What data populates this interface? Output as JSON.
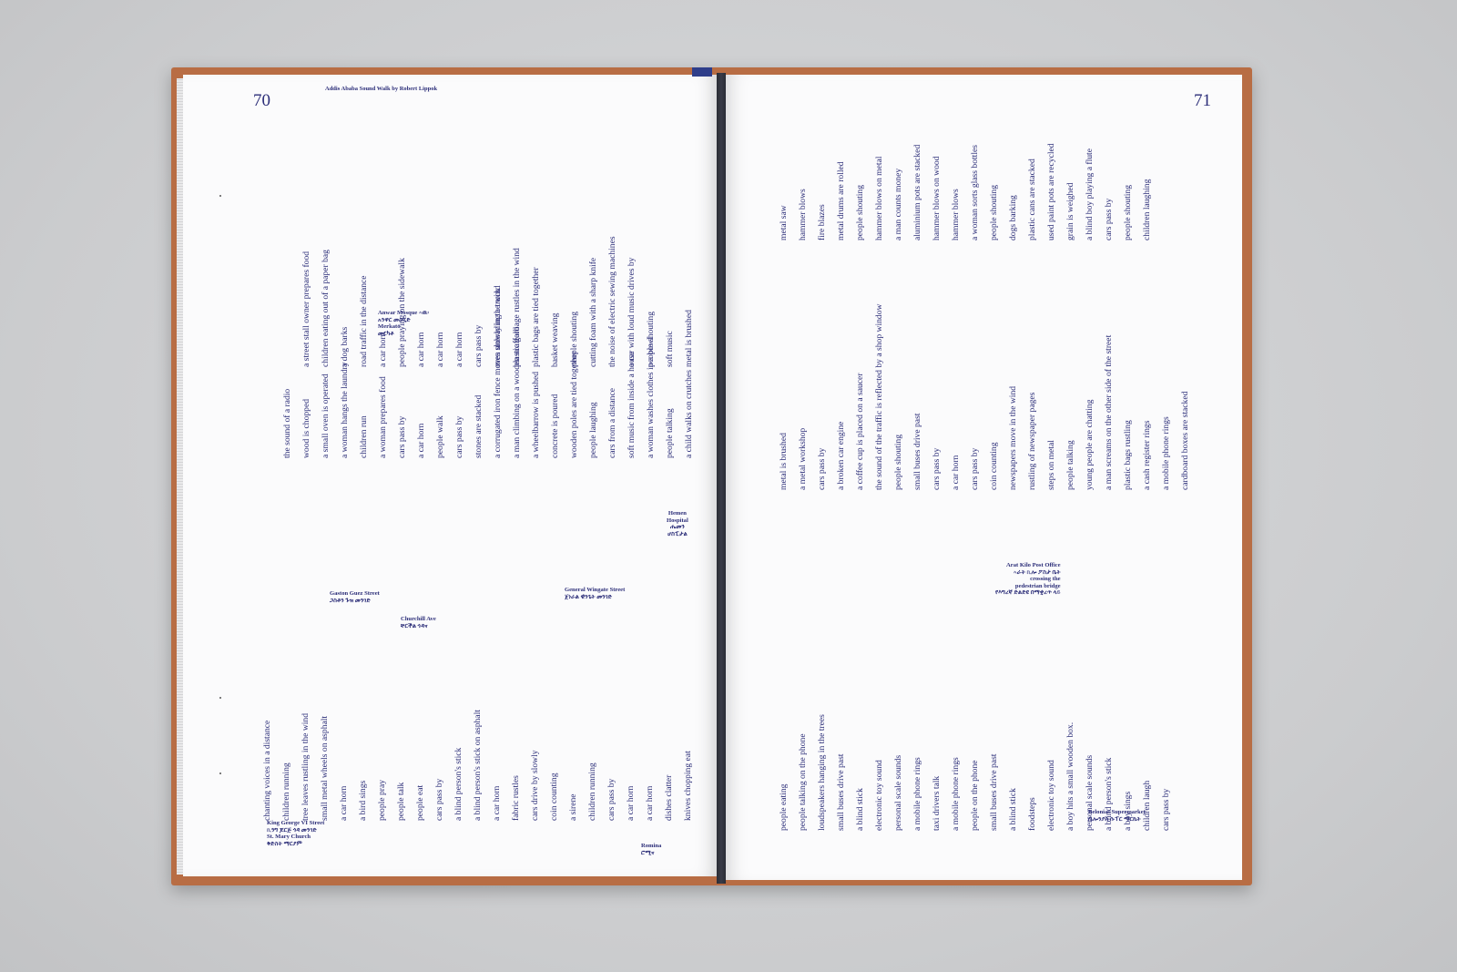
{
  "left_page": {
    "page_number": "70",
    "header": "Addis Ababa Sound Walk by Robert Lippok",
    "block_top": [
      "a street stall owner prepares food",
      "children eating out of a paper bag",
      "a dog barks",
      "road traffic in the distance",
      "a car horn",
      "people praying on the sidewalk",
      "a car horn",
      "a car horn",
      "a car horn",
      "cars pass by",
      "men unloading a truck",
      "plastic garbage rustles in the wind",
      "plastic bags are tied together",
      "basket weaving",
      "people shouting",
      "cutting foam with a sharp knife",
      "the noise of electric sewing machines",
      "a car with loud music drives by",
      "people shouting",
      "soft music",
      "metal is brushed"
    ],
    "block_mid": [
      "the sound of a radio",
      "wood is chopped",
      "a small oven is operated",
      "a woman hangs the laundry",
      "children run",
      "a woman prepares food",
      "cars pass by",
      "a car horn",
      "people walk",
      "cars pass by",
      "stones are stacked",
      "a corrugated iron fence moves slowly in the wind",
      "a man climbing on a wooden scaffold",
      "a wheelbarrow is pushed",
      "concrete is poured",
      "wooden poles are tied together",
      "people laughing",
      "cars from a distance",
      "soft music from inside a house",
      "a woman washes clothes in a bowl",
      "people talking",
      "a child walks on crutches"
    ],
    "block_bottom": [
      "chanting voices in a distance",
      "children running",
      "tree leaves rustling in the wind",
      "small metal wheels on asphalt",
      "a car horn",
      "a bird sings",
      "people pray",
      "people talk",
      "people eat",
      "cars pass by",
      "a blind person's stick",
      "a blind person's stick on asphalt",
      "a car horn",
      "fabric rustles",
      "cars drive by slowly",
      "coin counting",
      "a sirene",
      "children running",
      "cars pass by",
      "a car horn",
      "a car horn",
      "dishes clatter",
      "knives chopping eat"
    ],
    "locations": {
      "anwar": [
        "Anwar Mosque ኣዉ፡",
        "አንዋር መስጊድ",
        "Merkato",
        "መርካቶ"
      ],
      "gaston": [
        "Gaston Guez Street",
        "ጋስቶን ጉዝ መንገድ"
      ],
      "churchill": [
        "Churchill Ave",
        "ቸርችል ጎዳና"
      ],
      "wingate": [
        "General Wingate Street",
        "ጀነራል ዊንጌት መንገድ"
      ],
      "hemen": [
        "Hemen",
        "Hospital",
        "ሔመን",
        "ሆስፒታል"
      ],
      "king": [
        "King George VI Street",
        "ኪንግ ጆርጅ ጎዳ መንገድ",
        "St. Mary Church",
        "ቅድስት ማርያም"
      ],
      "romina": [
        "Romina",
        "ሮሚና"
      ]
    }
  },
  "right_page": {
    "page_number": "71",
    "block_top": [
      "metal saw",
      "hammer blows",
      "fire blazes",
      "metal drums are rolled",
      "people shouting",
      "hammer blows on metal",
      "a man counts money",
      "aluminium pots are stacked",
      "hammer blows on wood",
      "hammer blows",
      "a woman sorts glass bottles",
      "people shouting",
      "dogs barking",
      "plastic cans are stacked",
      "used paint pots are recycled",
      "grain is weighed",
      "a blind boy playing a flute",
      "cars pass by",
      "people shouting",
      "children laughing"
    ],
    "block_mid": [
      "metal is brushed",
      "a metal workshop",
      "cars pass by",
      "a broken car engine",
      "a coffee cup is placed on a saucer",
      "the sound of the traffic is reflected by a shop window",
      "people shouting",
      "small buses drive past",
      "cars pass by",
      "a car horn",
      "cars pass by",
      "coin counting",
      "newspapers move in the wind",
      "rustling of newspaper pages",
      "steps on metal",
      "people talking",
      "young people are chatting",
      "a man screams on the other side of the street",
      "plastic bags rustling",
      "a cash register rings",
      "a mobile phone rings",
      "cardboard boxes are stacked"
    ],
    "block_bottom": [
      "people eating",
      "people talking on the phone",
      "loudspeakers hanging in the trees",
      "small buses drive past",
      "a blind stick",
      "electronic toy sound",
      "personal scale sounds",
      "a mobile phone rings",
      "taxi drivers talk",
      "a mobile phone rings",
      "people on the phone",
      "small buses drive past",
      "a blind stick",
      "foodsteps",
      "electronic toy sound",
      "a boy hits a small wooden box.",
      "personal scale sounds",
      "a blind  person's stick",
      "a boy sings",
      "children laugh",
      "cars pass by"
    ],
    "locations": {
      "arat": [
        "Arat Kilo Post Office",
        "ኣራት ኪሎ ፖስታ ቤት",
        "crossing the",
        "pedestrian bridge",
        "የእግረኛ ድልድዩ በማቋረጥ ላይ"
      ],
      "belonias": [
        "Belonias Supermarket",
        "ቤሎንያስ ሱፐር ማርኬት"
      ]
    }
  }
}
